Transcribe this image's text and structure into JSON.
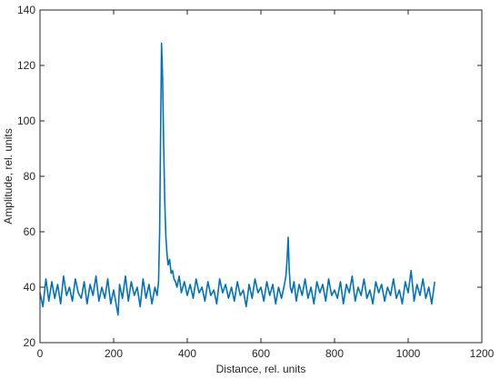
{
  "chart_data": {
    "type": "line",
    "title": "",
    "xlabel": "Distance, rel. units",
    "ylabel": "Amplitude, rel. units",
    "xlim": [
      0,
      1200
    ],
    "ylim": [
      20,
      140
    ],
    "xticks": [
      0,
      200,
      400,
      600,
      800,
      1000,
      1200
    ],
    "yticks": [
      20,
      40,
      60,
      80,
      100,
      120,
      140
    ],
    "grid": false,
    "legend": "none",
    "series": [
      {
        "color": "#0072BD",
        "x": [
          0,
          8,
          16,
          24,
          32,
          40,
          48,
          56,
          64,
          72,
          80,
          88,
          96,
          104,
          112,
          120,
          128,
          136,
          144,
          152,
          160,
          168,
          176,
          184,
          192,
          200,
          208,
          212,
          216,
          224,
          232,
          240,
          248,
          256,
          264,
          272,
          280,
          288,
          296,
          304,
          312,
          318,
          322,
          325,
          328,
          330,
          333,
          336,
          339,
          342,
          345,
          348,
          352,
          356,
          360,
          364,
          368,
          372,
          378,
          384,
          392,
          400,
          408,
          416,
          424,
          432,
          440,
          448,
          456,
          464,
          472,
          480,
          488,
          496,
          504,
          512,
          520,
          528,
          536,
          544,
          552,
          560,
          568,
          576,
          584,
          592,
          600,
          608,
          616,
          624,
          632,
          640,
          648,
          656,
          664,
          668,
          671,
          674,
          677,
          680,
          684,
          690,
          696,
          704,
          712,
          720,
          728,
          736,
          744,
          752,
          760,
          768,
          776,
          784,
          792,
          800,
          808,
          816,
          824,
          832,
          840,
          848,
          856,
          864,
          872,
          880,
          888,
          896,
          904,
          912,
          920,
          928,
          936,
          944,
          952,
          960,
          968,
          976,
          984,
          992,
          1000,
          1008,
          1016,
          1024,
          1032,
          1040,
          1048,
          1056,
          1064,
          1072
        ],
        "y": [
          38,
          33,
          43,
          35,
          42,
          36,
          41,
          34,
          44,
          37,
          40,
          35,
          43,
          38,
          36,
          42,
          34,
          41,
          37,
          44,
          35,
          40,
          36,
          43,
          34,
          39,
          33,
          30,
          41,
          36,
          44,
          35,
          42,
          37,
          40,
          33,
          43,
          36,
          41,
          34,
          40,
          37,
          42,
          60,
          100,
          128,
          115,
          90,
          70,
          58,
          52,
          48,
          50,
          45,
          46,
          43,
          42,
          40,
          44,
          38,
          42,
          37,
          41,
          36,
          43,
          38,
          40,
          35,
          42,
          37,
          39,
          34,
          43,
          38,
          41,
          36,
          40,
          35,
          42,
          37,
          39,
          33,
          41,
          36,
          43,
          38,
          40,
          35,
          42,
          37,
          41,
          34,
          40,
          36,
          41,
          44,
          50,
          58,
          46,
          40,
          38,
          42,
          35,
          41,
          37,
          43,
          36,
          40,
          34,
          42,
          38,
          41,
          35,
          43,
          37,
          39,
          36,
          42,
          34,
          41,
          38,
          44,
          35,
          40,
          37,
          43,
          36,
          39,
          34,
          42,
          38,
          41,
          35,
          40,
          37,
          43,
          36,
          39,
          34,
          42,
          38,
          46,
          35,
          41,
          37,
          43,
          36,
          40,
          34,
          42
        ]
      }
    ]
  }
}
